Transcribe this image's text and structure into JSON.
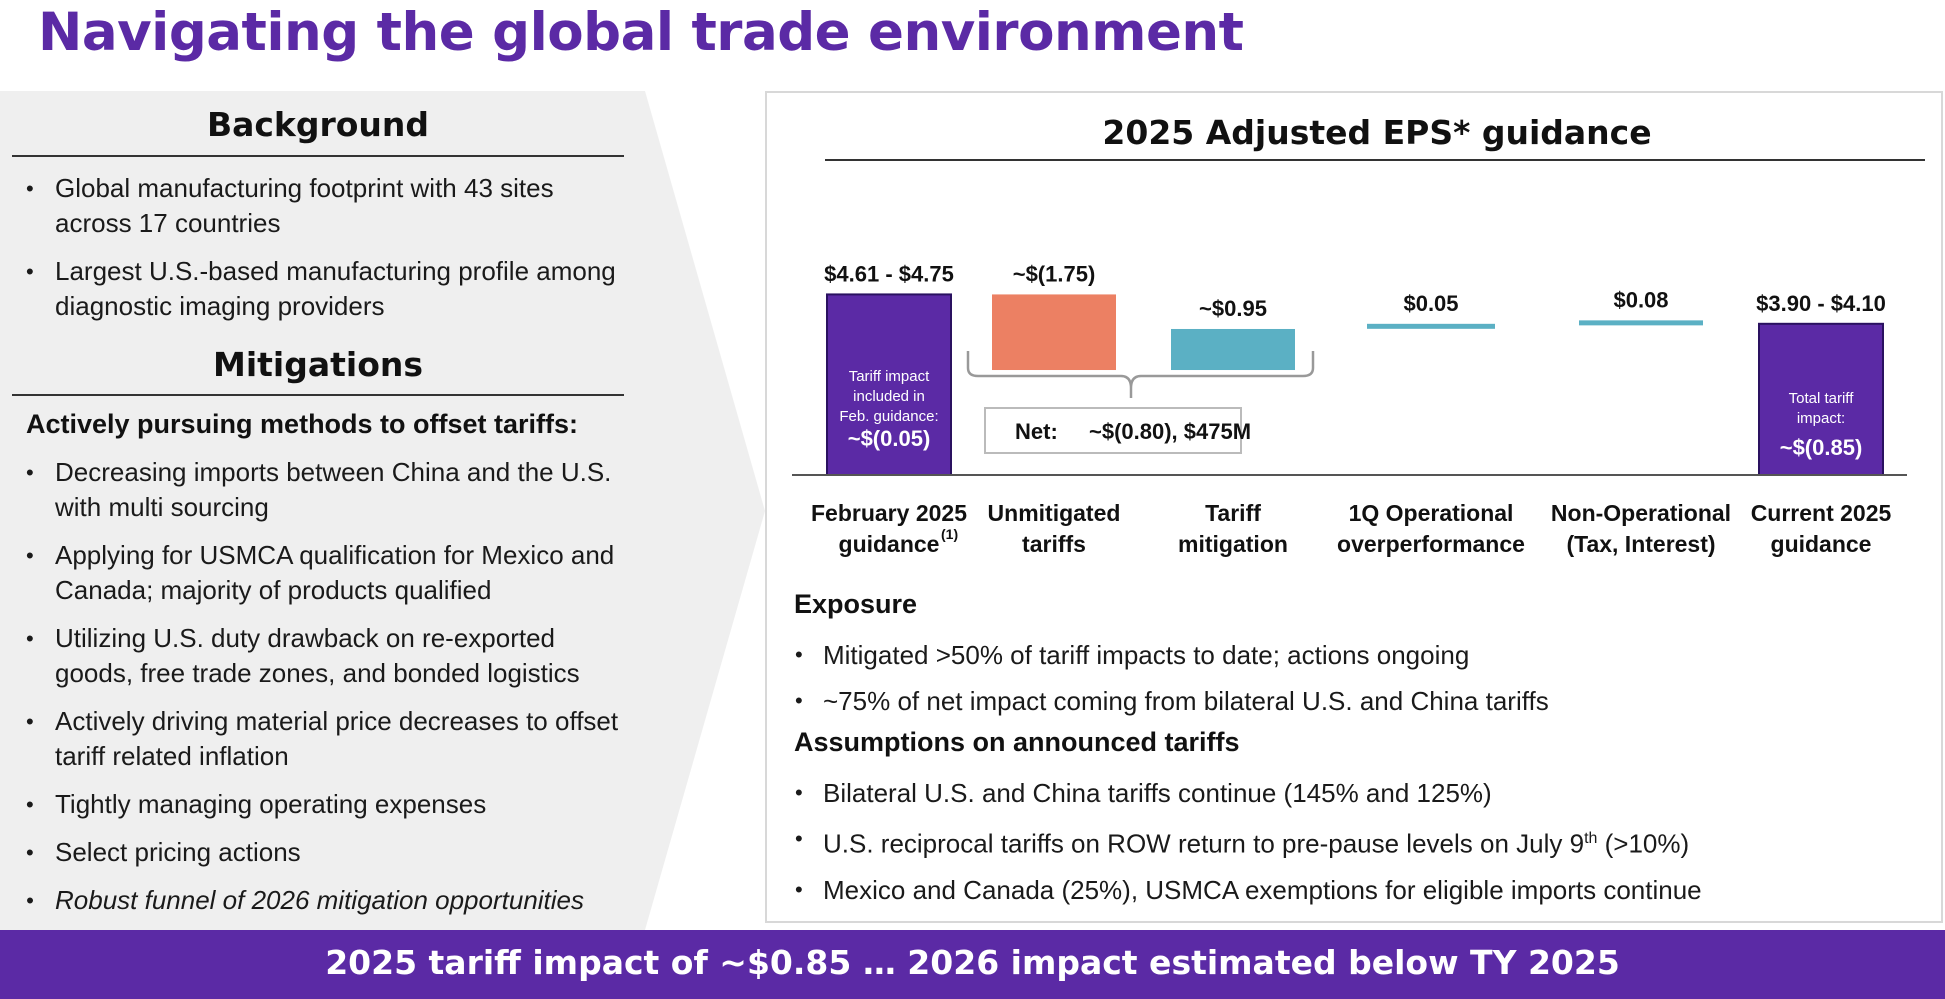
{
  "title": "Navigating the global trade environment",
  "background": {
    "heading": "Background",
    "bullets": [
      "Global manufacturing footprint with 43 sites across 17 countries",
      "Largest U.S.-based manufacturing profile among diagnostic imaging providers"
    ]
  },
  "mitigations": {
    "heading": "Mitigations",
    "subheading": "Actively pursuing methods to offset tariffs:",
    "bullets": [
      "Decreasing imports between China and the U.S. with multi sourcing",
      "Applying for USMCA qualification for Mexico and Canada; majority of products qualified",
      "Utilizing U.S. duty drawback on re-exported goods, free trade zones, and bonded logistics",
      "Actively driving material price decreases to offset tariff related inflation",
      "Tightly managing operating expenses",
      "Select pricing actions"
    ],
    "italic_bullet": "Robust funnel of 2026 mitigation opportunities"
  },
  "chart_data": {
    "type": "bar",
    "subtype": "waterfall",
    "title": "2025 Adjusted EPS* guidance",
    "categories": [
      "February 2025 guidance(1)",
      "Unmitigated tariffs",
      "Tariff mitigation",
      "1Q Operational overperformance",
      "Non-Operational (Tax, Interest)",
      "Current 2025 guidance"
    ],
    "category_lines": [
      [
        "February 2025",
        "guidance"
      ],
      [
        "Unmitigated",
        "tariffs"
      ],
      [
        "Tariff",
        "mitigation"
      ],
      [
        "1Q Operational",
        "overperformance"
      ],
      [
        "Non-Operational",
        "(Tax, Interest)"
      ],
      [
        "Current 2025",
        "guidance"
      ]
    ],
    "category_superscript": "(1)",
    "data_labels": [
      "$4.61 - $4.75",
      "~$(1.75)",
      "~$0.95",
      "$0.05",
      "$0.08",
      "$3.90 - $4.10"
    ],
    "bars": [
      {
        "kind": "total",
        "low": 0,
        "high": 4.68,
        "color": "#5b2aa5"
      },
      {
        "kind": "decrease",
        "value": -1.75,
        "color": "#ec8063"
      },
      {
        "kind": "increase",
        "value": 0.95,
        "color": "#5bb0c4"
      },
      {
        "kind": "increase",
        "value": 0.05,
        "color": "#5bb0c4"
      },
      {
        "kind": "increase",
        "value": 0.08,
        "color": "#5bb0c4"
      },
      {
        "kind": "total",
        "low": 0,
        "high": 4.0,
        "color": "#5b2aa5"
      }
    ],
    "annotations": {
      "feb_inside": [
        "Tariff impact",
        "included in",
        "Feb. guidance:"
      ],
      "feb_value": "~$(0.05)",
      "current_inside": [
        "Total tariff",
        "impact:"
      ],
      "current_value": "~$(0.85)",
      "net_label": "Net:",
      "net_value": "~$(0.80), $475M"
    }
  },
  "exposure": {
    "heading": "Exposure",
    "bullets": [
      "Mitigated >50% of tariff impacts to date; actions ongoing",
      "~75% of net impact coming from bilateral U.S. and China tariffs"
    ]
  },
  "assumptions": {
    "heading": "Assumptions on announced tariffs",
    "bullet1": "Bilateral U.S. and China tariffs continue (145% and 125%)",
    "bullet2_pre": "U.S. reciprocal tariffs on ROW return to pre-pause levels on July 9",
    "bullet2_sup": "th",
    "bullet2_post": " (>10%)",
    "bullet3": "Mexico and Canada (25%), USMCA exemptions for eligible imports continue"
  },
  "footer": "2025 tariff impact of ~$0.85 … 2026 impact estimated below TY 2025"
}
